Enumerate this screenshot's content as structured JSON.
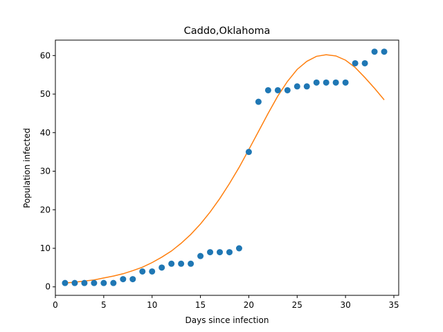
{
  "chart_data": {
    "type": "scatter",
    "title": "Caddo,Oklahoma",
    "xlabel": "Days since infection",
    "ylabel": "Population infected",
    "xlim": [
      0,
      35.5
    ],
    "ylim": [
      -2.2,
      64
    ],
    "xticks": [
      0,
      5,
      10,
      15,
      20,
      25,
      30,
      35
    ],
    "yticks": [
      0,
      10,
      20,
      30,
      40,
      50,
      60
    ],
    "grid": false,
    "series": [
      {
        "kind": "scatter",
        "color": "#1f77b4",
        "x": [
          1,
          2,
          3,
          4,
          5,
          6,
          7,
          8,
          9,
          10,
          11,
          12,
          13,
          14,
          15,
          16,
          17,
          18,
          19,
          20,
          21,
          22,
          23,
          24,
          25,
          26,
          27,
          28,
          29,
          30,
          31,
          32,
          33,
          34
        ],
        "y": [
          1,
          1,
          1,
          1,
          1,
          1,
          2,
          2,
          4,
          4,
          5,
          6,
          6,
          6,
          8,
          9,
          9,
          9,
          10,
          35,
          48,
          51,
          51,
          51,
          52,
          52,
          53,
          53,
          53,
          53,
          58,
          58,
          61,
          61
        ]
      },
      {
        "kind": "line",
        "color": "#ff7f0e",
        "x": [
          1,
          2,
          3,
          4,
          5,
          6,
          7,
          8,
          9,
          10,
          11,
          12,
          13,
          14,
          15,
          16,
          17,
          18,
          19,
          20,
          21,
          22,
          23,
          24,
          25,
          26,
          27,
          28,
          29,
          30,
          31,
          32,
          33,
          34
        ],
        "y": [
          1.0,
          1.2,
          1.5,
          1.8,
          2.3,
          2.8,
          3.4,
          4.2,
          5.1,
          6.3,
          7.7,
          9.3,
          11.3,
          13.6,
          16.3,
          19.4,
          22.9,
          26.8,
          31.0,
          35.6,
          40.3,
          45.0,
          49.5,
          53.3,
          56.4,
          58.5,
          59.8,
          60.2,
          59.9,
          58.8,
          56.9,
          54.3,
          51.5,
          48.5
        ]
      }
    ]
  }
}
